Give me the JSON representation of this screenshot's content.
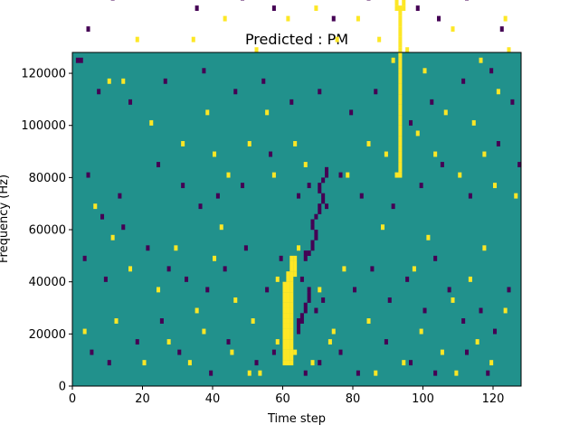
{
  "chart_data": {
    "type": "heatmap",
    "title": "Predicted : PM",
    "xlabel": "Time step",
    "ylabel": "Frequency (Hz)",
    "xlim": [
      0,
      128
    ],
    "ylim": [
      0,
      128000
    ],
    "x_ticks": [
      0,
      20,
      40,
      60,
      80,
      100,
      120
    ],
    "y_ticks": [
      0,
      20000,
      40000,
      60000,
      80000,
      100000,
      120000
    ],
    "grid": false,
    "legend": "none",
    "n_time_steps": 128,
    "n_freq_bins": 64,
    "freq_bin_width": 2000,
    "colors": {
      "background": "#21918c",
      "low": "#440154",
      "high": "#fde725"
    },
    "cells_high": [
      [
        29,
        118
      ],
      [
        40,
        114
      ],
      [
        38,
        114
      ],
      [
        15,
        112
      ],
      [
        28,
        104
      ],
      [
        22,
        98
      ],
      [
        33,
        96
      ],
      [
        9,
        90
      ],
      [
        5,
        84
      ],
      [
        9,
        76
      ],
      [
        19,
        86
      ],
      [
        32,
        92
      ],
      [
        47,
        92
      ],
      [
        56,
        88
      ],
      [
        63,
        80
      ],
      [
        68,
        88
      ],
      [
        88,
        96
      ],
      [
        96,
        98
      ],
      [
        104,
        98
      ],
      [
        112,
        90
      ],
      [
        119,
        78
      ],
      [
        123,
        70
      ],
      [
        126,
        76
      ],
      [
        18,
        66
      ],
      [
        34,
        66
      ],
      [
        43,
        70
      ],
      [
        52,
        64
      ],
      [
        61,
        70
      ],
      [
        69,
        72
      ],
      [
        75,
        66
      ],
      [
        81,
        70
      ],
      [
        87,
        66
      ],
      [
        91,
        62
      ],
      [
        95,
        64
      ],
      [
        100,
        60
      ],
      [
        108,
        68
      ],
      [
        116,
        62
      ],
      [
        121,
        56
      ],
      [
        124,
        64
      ],
      [
        10,
        58
      ],
      [
        14,
        58
      ],
      [
        22,
        50
      ],
      [
        31,
        46
      ],
      [
        38,
        52
      ],
      [
        40,
        44
      ],
      [
        44,
        40
      ],
      [
        50,
        46
      ],
      [
        55,
        52
      ],
      [
        57,
        40
      ],
      [
        63,
        46
      ],
      [
        66,
        42
      ],
      [
        78,
        40
      ],
      [
        84,
        46
      ],
      [
        89,
        44
      ],
      [
        92,
        40
      ],
      [
        98,
        48
      ],
      [
        103,
        44
      ],
      [
        106,
        52
      ],
      [
        110,
        40
      ],
      [
        114,
        50
      ],
      [
        117,
        44
      ],
      [
        120,
        38
      ],
      [
        126,
        36
      ],
      [
        6,
        34
      ],
      [
        11,
        28
      ],
      [
        16,
        22
      ],
      [
        24,
        18
      ],
      [
        29,
        26
      ],
      [
        35,
        14
      ],
      [
        40,
        24
      ],
      [
        42,
        30
      ],
      [
        46,
        16
      ],
      [
        51,
        12
      ],
      [
        58,
        20
      ],
      [
        64,
        26
      ],
      [
        70,
        18
      ],
      [
        74,
        10
      ],
      [
        77,
        22
      ],
      [
        84,
        12
      ],
      [
        88,
        30
      ],
      [
        97,
        22
      ],
      [
        101,
        28
      ],
      [
        108,
        16
      ],
      [
        113,
        20
      ],
      [
        117,
        26
      ],
      [
        123,
        14
      ],
      [
        3,
        10
      ],
      [
        12,
        12
      ],
      [
        20,
        4
      ],
      [
        27,
        8
      ],
      [
        33,
        4
      ],
      [
        37,
        10
      ],
      [
        45,
        6
      ],
      [
        50,
        2
      ],
      [
        53,
        2
      ],
      [
        58,
        8
      ],
      [
        63,
        6
      ],
      [
        68,
        4
      ],
      [
        73,
        8
      ],
      [
        86,
        2
      ],
      [
        94,
        4
      ],
      [
        99,
        10
      ],
      [
        105,
        6
      ],
      [
        109,
        2
      ],
      [
        115,
        8
      ],
      [
        119,
        4
      ],
      [
        60,
        4
      ],
      [
        61,
        4
      ],
      [
        62,
        4
      ],
      [
        60,
        5
      ],
      [
        61,
        5
      ],
      [
        62,
        5
      ],
      [
        60,
        6
      ],
      [
        61,
        6
      ],
      [
        62,
        6
      ],
      [
        60,
        7
      ],
      [
        61,
        7
      ],
      [
        62,
        7
      ],
      [
        60,
        8
      ],
      [
        61,
        8
      ],
      [
        62,
        8
      ],
      [
        60,
        9
      ],
      [
        61,
        9
      ],
      [
        62,
        9
      ],
      [
        60,
        10
      ],
      [
        61,
        10
      ],
      [
        62,
        10
      ],
      [
        60,
        11
      ],
      [
        61,
        11
      ],
      [
        62,
        11
      ],
      [
        60,
        12
      ],
      [
        61,
        12
      ],
      [
        62,
        12
      ],
      [
        60,
        13
      ],
      [
        61,
        13
      ],
      [
        62,
        13
      ],
      [
        60,
        14
      ],
      [
        61,
        14
      ],
      [
        62,
        14
      ],
      [
        60,
        15
      ],
      [
        61,
        15
      ],
      [
        62,
        15
      ],
      [
        60,
        16
      ],
      [
        61,
        16
      ],
      [
        62,
        16
      ],
      [
        60,
        17
      ],
      [
        61,
        17
      ],
      [
        62,
        17
      ],
      [
        60,
        18
      ],
      [
        61,
        18
      ],
      [
        62,
        18
      ],
      [
        60,
        19
      ],
      [
        61,
        19
      ],
      [
        62,
        19
      ],
      [
        61,
        20
      ],
      [
        62,
        20
      ],
      [
        61,
        21
      ],
      [
        62,
        21
      ],
      [
        63,
        21
      ],
      [
        62,
        22
      ],
      [
        63,
        22
      ],
      [
        62,
        23
      ],
      [
        63,
        23
      ],
      [
        62,
        24
      ],
      [
        63,
        24
      ],
      [
        93,
        40
      ],
      [
        93,
        41
      ],
      [
        93,
        42
      ],
      [
        93,
        43
      ],
      [
        93,
        44
      ],
      [
        93,
        45
      ],
      [
        93,
        46
      ],
      [
        93,
        47
      ],
      [
        93,
        48
      ],
      [
        93,
        49
      ],
      [
        93,
        50
      ],
      [
        93,
        51
      ],
      [
        93,
        52
      ],
      [
        93,
        53
      ],
      [
        93,
        54
      ],
      [
        93,
        55
      ],
      [
        93,
        56
      ],
      [
        93,
        57
      ],
      [
        93,
        58
      ],
      [
        93,
        59
      ],
      [
        93,
        60
      ],
      [
        93,
        61
      ],
      [
        93,
        62
      ],
      [
        93,
        63
      ],
      [
        93,
        64
      ],
      [
        93,
        65
      ],
      [
        93,
        66
      ],
      [
        93,
        67
      ],
      [
        93,
        68
      ],
      [
        93,
        69
      ],
      [
        93,
        70
      ],
      [
        93,
        71
      ],
      [
        93,
        72
      ],
      [
        92,
        72
      ],
      [
        92,
        73
      ],
      [
        92,
        74
      ],
      [
        94,
        72
      ],
      [
        94,
        73
      ],
      [
        94,
        74
      ],
      [
        93,
        75
      ],
      [
        93,
        76
      ],
      [
        94,
        76
      ],
      [
        95,
        76
      ],
      [
        93,
        77
      ]
    ],
    "cells_low": [
      [
        2,
        118
      ],
      [
        24,
        114
      ],
      [
        35,
        116
      ],
      [
        55,
        110
      ],
      [
        66,
        106
      ],
      [
        76,
        108
      ],
      [
        94,
        114
      ],
      [
        104,
        110
      ],
      [
        116,
        108
      ],
      [
        127,
        92
      ],
      [
        3,
        102
      ],
      [
        13,
        96
      ],
      [
        23,
        86
      ],
      [
        36,
        94
      ],
      [
        45,
        100
      ],
      [
        58,
        96
      ],
      [
        71,
        102
      ],
      [
        82,
        94
      ],
      [
        99,
        96
      ],
      [
        109,
        104
      ],
      [
        2,
        80
      ],
      [
        4,
        68
      ],
      [
        11,
        74
      ],
      [
        26,
        76
      ],
      [
        27,
        76
      ],
      [
        35,
        72
      ],
      [
        48,
        74
      ],
      [
        57,
        72
      ],
      [
        65,
        76
      ],
      [
        74,
        70
      ],
      [
        84,
        74
      ],
      [
        90,
        78
      ],
      [
        98,
        72
      ],
      [
        104,
        70
      ],
      [
        112,
        74
      ],
      [
        122,
        68
      ],
      [
        1,
        62
      ],
      [
        2,
        62
      ],
      [
        7,
        56
      ],
      [
        16,
        54
      ],
      [
        26,
        58
      ],
      [
        37,
        60
      ],
      [
        46,
        56
      ],
      [
        54,
        58
      ],
      [
        62,
        54
      ],
      [
        70,
        56
      ],
      [
        79,
        52
      ],
      [
        86,
        56
      ],
      [
        96,
        50
      ],
      [
        102,
        54
      ],
      [
        111,
        58
      ],
      [
        119,
        60
      ],
      [
        125,
        54
      ],
      [
        4,
        40
      ],
      [
        8,
        32
      ],
      [
        13,
        36
      ],
      [
        24,
        42
      ],
      [
        31,
        38
      ],
      [
        36,
        34
      ],
      [
        41,
        36
      ],
      [
        48,
        38
      ],
      [
        56,
        44
      ],
      [
        64,
        36
      ],
      [
        67,
        38
      ],
      [
        72,
        34
      ],
      [
        76,
        40
      ],
      [
        82,
        36
      ],
      [
        91,
        34
      ],
      [
        99,
        38
      ],
      [
        105,
        42
      ],
      [
        113,
        36
      ],
      [
        121,
        46
      ],
      [
        127,
        42
      ],
      [
        3,
        24
      ],
      [
        9,
        20
      ],
      [
        14,
        30
      ],
      [
        21,
        26
      ],
      [
        27,
        22
      ],
      [
        32,
        20
      ],
      [
        38,
        18
      ],
      [
        43,
        22
      ],
      [
        49,
        26
      ],
      [
        55,
        18
      ],
      [
        59,
        24
      ],
      [
        65,
        20
      ],
      [
        69,
        14
      ],
      [
        71,
        16
      ],
      [
        80,
        18
      ],
      [
        85,
        22
      ],
      [
        90,
        16
      ],
      [
        95,
        20
      ],
      [
        100,
        14
      ],
      [
        103,
        24
      ],
      [
        107,
        18
      ],
      [
        111,
        12
      ],
      [
        116,
        14
      ],
      [
        120,
        10
      ],
      [
        124,
        18
      ],
      [
        5,
        6
      ],
      [
        10,
        4
      ],
      [
        18,
        8
      ],
      [
        25,
        12
      ],
      [
        30,
        6
      ],
      [
        39,
        2
      ],
      [
        44,
        8
      ],
      [
        52,
        4
      ],
      [
        57,
        6
      ],
      [
        66,
        2
      ],
      [
        70,
        4
      ],
      [
        76,
        6
      ],
      [
        81,
        2
      ],
      [
        89,
        8
      ],
      [
        96,
        4
      ],
      [
        103,
        2
      ],
      [
        112,
        6
      ],
      [
        118,
        2
      ],
      [
        64,
        10
      ],
      [
        64,
        11
      ],
      [
        64,
        12
      ],
      [
        65,
        12
      ],
      [
        65,
        13
      ],
      [
        66,
        14
      ],
      [
        66,
        15
      ],
      [
        67,
        16
      ],
      [
        67,
        17
      ],
      [
        67,
        18
      ],
      [
        66,
        24
      ],
      [
        66,
        25
      ],
      [
        67,
        25
      ],
      [
        68,
        26
      ],
      [
        68,
        27
      ],
      [
        69,
        28
      ],
      [
        69,
        29
      ],
      [
        68,
        30
      ],
      [
        68,
        31
      ],
      [
        69,
        32
      ],
      [
        70,
        33
      ],
      [
        70,
        34
      ],
      [
        71,
        35
      ],
      [
        71,
        36
      ],
      [
        70,
        37
      ],
      [
        70,
        38
      ],
      [
        71,
        39
      ],
      [
        72,
        40
      ],
      [
        72,
        41
      ]
    ]
  }
}
